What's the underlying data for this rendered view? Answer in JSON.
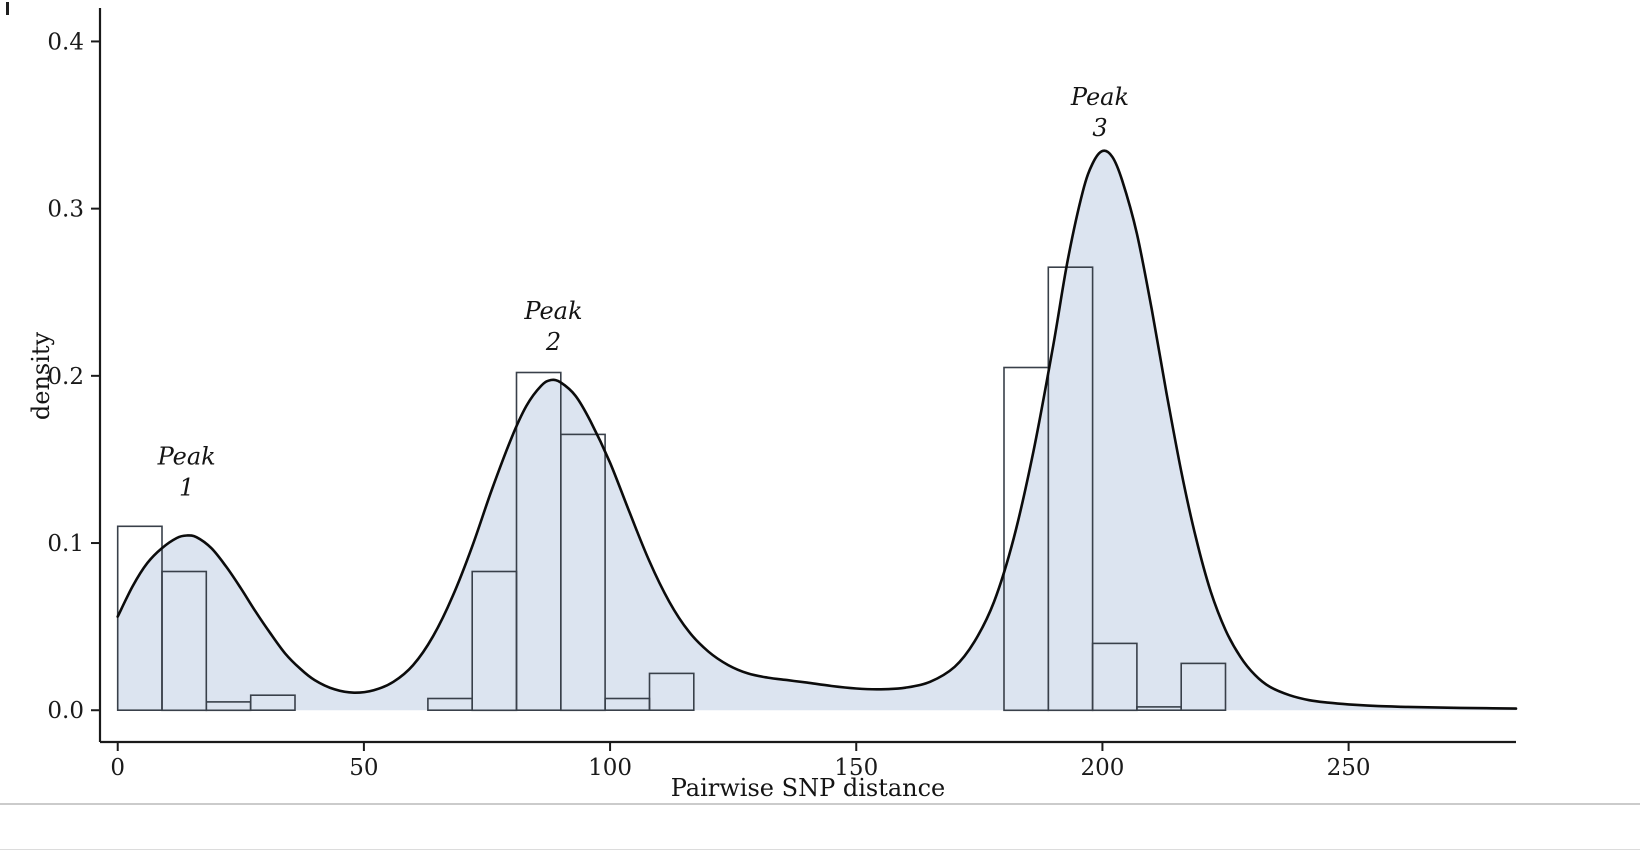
{
  "chart_data": {
    "type": "histogram+kde",
    "title": "",
    "xlabel": "Pairwise SNP distance",
    "ylabel": "density",
    "xlim": [
      -3.6,
      284
    ],
    "ylim": [
      -0.019,
      0.42
    ],
    "x_ticks": [
      0,
      50,
      100,
      150,
      200,
      250
    ],
    "y_ticks": [
      0,
      0.1,
      0.2,
      0.3,
      0.4
    ],
    "grid": false,
    "legend": "none",
    "histogram": {
      "bin_width": 9,
      "bars": [
        {
          "x0": 0,
          "x1": 9,
          "density": 0.11
        },
        {
          "x0": 9,
          "x1": 18,
          "density": 0.083
        },
        {
          "x0": 18,
          "x1": 27,
          "density": 0.005
        },
        {
          "x0": 27,
          "x1": 36,
          "density": 0.009
        },
        {
          "x0": 63,
          "x1": 72,
          "density": 0.007
        },
        {
          "x0": 72,
          "x1": 81,
          "density": 0.083
        },
        {
          "x0": 81,
          "x1": 90,
          "density": 0.202
        },
        {
          "x0": 90,
          "x1": 99,
          "density": 0.165
        },
        {
          "x0": 99,
          "x1": 108,
          "density": 0.007
        },
        {
          "x0": 108,
          "x1": 117,
          "density": 0.022
        },
        {
          "x0": 180,
          "x1": 189,
          "density": 0.205
        },
        {
          "x0": 189,
          "x1": 198,
          "density": 0.265
        },
        {
          "x0": 198,
          "x1": 207,
          "density": 0.04
        },
        {
          "x0": 207,
          "x1": 216,
          "density": 0.002
        },
        {
          "x0": 216,
          "x1": 225,
          "density": 0.028
        }
      ]
    },
    "kde_points": [
      [
        0,
        0.056
      ],
      [
        3,
        0.074
      ],
      [
        6,
        0.088
      ],
      [
        9,
        0.097
      ],
      [
        12,
        0.103
      ],
      [
        14,
        0.1045
      ],
      [
        16,
        0.1035
      ],
      [
        19,
        0.097
      ],
      [
        22,
        0.086
      ],
      [
        25,
        0.073
      ],
      [
        28,
        0.059
      ],
      [
        31,
        0.046
      ],
      [
        34,
        0.034
      ],
      [
        37,
        0.025
      ],
      [
        40,
        0.018
      ],
      [
        44,
        0.0125
      ],
      [
        48,
        0.0105
      ],
      [
        52,
        0.012
      ],
      [
        56,
        0.017
      ],
      [
        60,
        0.027
      ],
      [
        64,
        0.044
      ],
      [
        68,
        0.068
      ],
      [
        72,
        0.098
      ],
      [
        76,
        0.132
      ],
      [
        80,
        0.163
      ],
      [
        83,
        0.182
      ],
      [
        86,
        0.194
      ],
      [
        88,
        0.1975
      ],
      [
        90,
        0.196
      ],
      [
        93,
        0.188
      ],
      [
        96,
        0.173
      ],
      [
        100,
        0.148
      ],
      [
        104,
        0.118
      ],
      [
        108,
        0.089
      ],
      [
        112,
        0.065
      ],
      [
        116,
        0.047
      ],
      [
        120,
        0.035
      ],
      [
        124,
        0.027
      ],
      [
        128,
        0.022
      ],
      [
        132,
        0.0195
      ],
      [
        136,
        0.018
      ],
      [
        140,
        0.0165
      ],
      [
        145,
        0.0145
      ],
      [
        150,
        0.013
      ],
      [
        155,
        0.0125
      ],
      [
        160,
        0.0135
      ],
      [
        165,
        0.017
      ],
      [
        170,
        0.026
      ],
      [
        174,
        0.041
      ],
      [
        178,
        0.065
      ],
      [
        182,
        0.103
      ],
      [
        186,
        0.155
      ],
      [
        190,
        0.218
      ],
      [
        193,
        0.27
      ],
      [
        196,
        0.31
      ],
      [
        198,
        0.327
      ],
      [
        200,
        0.3345
      ],
      [
        202,
        0.331
      ],
      [
        204,
        0.317
      ],
      [
        207,
        0.285
      ],
      [
        210,
        0.24
      ],
      [
        213,
        0.19
      ],
      [
        216,
        0.143
      ],
      [
        219,
        0.103
      ],
      [
        222,
        0.071
      ],
      [
        225,
        0.048
      ],
      [
        228,
        0.032
      ],
      [
        231,
        0.021
      ],
      [
        234,
        0.014
      ],
      [
        238,
        0.009
      ],
      [
        242,
        0.006
      ],
      [
        246,
        0.0045
      ],
      [
        250,
        0.0035
      ],
      [
        256,
        0.0025
      ],
      [
        262,
        0.002
      ],
      [
        270,
        0.0015
      ],
      [
        278,
        0.0012
      ],
      [
        284,
        0.001
      ]
    ],
    "annotations": [
      {
        "label": "Peak 1",
        "lines": [
          "Peak",
          "1"
        ],
        "x": 14,
        "y": 0.147
      },
      {
        "label": "Peak 2",
        "lines": [
          "Peak",
          "2"
        ],
        "x": 88.5,
        "y": 0.234
      },
      {
        "label": "Peak 3",
        "lines": [
          "Peak",
          "3"
        ],
        "x": 199.5,
        "y": 0.362
      }
    ],
    "colors": {
      "area_fill": "#dce4f0",
      "kde_line": "#0c0c0c",
      "bar_stroke": "#39404a",
      "axis": "#1a1a1a",
      "text": "#1a1a1a"
    }
  }
}
